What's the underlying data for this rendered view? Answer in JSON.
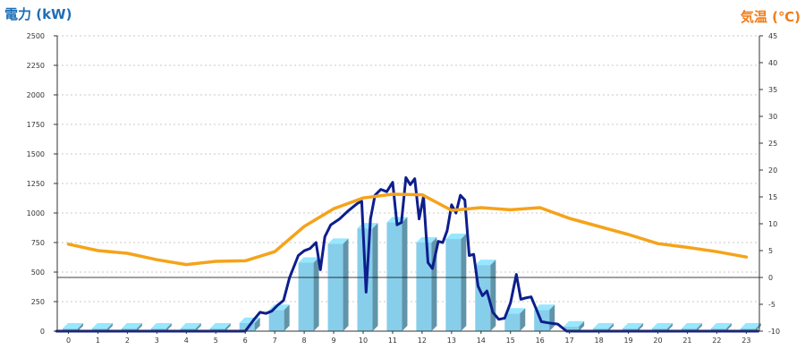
{
  "chart_data": {
    "type": "bar",
    "left_axis": {
      "title": "電力 (kW)",
      "color": "#1f6fb5",
      "ylim": [
        0,
        2500
      ],
      "ticks": [
        0,
        250,
        500,
        750,
        1000,
        1250,
        1500,
        1750,
        2000,
        2250,
        2500
      ]
    },
    "right_axis": {
      "title": "気温 (℃)",
      "color": "#f07d1a",
      "ylim": [
        -10,
        45
      ],
      "ticks": [
        -10,
        -5,
        0,
        5,
        10,
        15,
        20,
        25,
        30,
        35,
        40,
        45
      ]
    },
    "categories": [
      "0",
      "1",
      "2",
      "3",
      "4",
      "5",
      "6",
      "7",
      "8",
      "9",
      "10",
      "11",
      "12",
      "13",
      "14",
      "15",
      "16",
      "17",
      "18",
      "19",
      "20",
      "21",
      "22",
      "23"
    ],
    "grid": true,
    "series": [
      {
        "kind": "bar-3d",
        "axis": "left",
        "color": "#87ceeb",
        "values": [
          0,
          0,
          0,
          0,
          0,
          0,
          70,
          180,
          580,
          740,
          870,
          920,
          750,
          780,
          560,
          150,
          180,
          40,
          0,
          0,
          0,
          0,
          0,
          0
        ]
      },
      {
        "kind": "line",
        "axis": "left",
        "color": "#0d1e8c",
        "points": [
          [
            -0.4,
            0
          ],
          [
            6.0,
            0
          ],
          [
            6.3,
            100
          ],
          [
            6.5,
            160
          ],
          [
            6.7,
            150
          ],
          [
            6.9,
            170
          ],
          [
            7.1,
            220
          ],
          [
            7.3,
            260
          ],
          [
            7.5,
            450
          ],
          [
            7.8,
            640
          ],
          [
            8.0,
            680
          ],
          [
            8.2,
            700
          ],
          [
            8.4,
            750
          ],
          [
            8.55,
            520
          ],
          [
            8.7,
            800
          ],
          [
            8.9,
            900
          ],
          [
            9.2,
            950
          ],
          [
            9.5,
            1020
          ],
          [
            9.8,
            1080
          ],
          [
            9.95,
            1100
          ],
          [
            10.1,
            330
          ],
          [
            10.25,
            950
          ],
          [
            10.4,
            1150
          ],
          [
            10.6,
            1200
          ],
          [
            10.8,
            1180
          ],
          [
            11.0,
            1260
          ],
          [
            11.15,
            900
          ],
          [
            11.3,
            920
          ],
          [
            11.45,
            1300
          ],
          [
            11.6,
            1240
          ],
          [
            11.75,
            1290
          ],
          [
            11.9,
            950
          ],
          [
            12.05,
            1140
          ],
          [
            12.2,
            580
          ],
          [
            12.35,
            530
          ],
          [
            12.55,
            760
          ],
          [
            12.7,
            750
          ],
          [
            12.85,
            850
          ],
          [
            13.0,
            1070
          ],
          [
            13.15,
            1000
          ],
          [
            13.3,
            1150
          ],
          [
            13.45,
            1110
          ],
          [
            13.6,
            640
          ],
          [
            13.75,
            650
          ],
          [
            13.9,
            380
          ],
          [
            14.05,
            300
          ],
          [
            14.2,
            340
          ],
          [
            14.4,
            160
          ],
          [
            14.6,
            100
          ],
          [
            14.8,
            110
          ],
          [
            15.0,
            240
          ],
          [
            15.2,
            480
          ],
          [
            15.35,
            270
          ],
          [
            15.5,
            280
          ],
          [
            15.7,
            290
          ],
          [
            15.85,
            200
          ],
          [
            16.05,
            80
          ],
          [
            16.3,
            70
          ],
          [
            16.6,
            60
          ],
          [
            16.9,
            0
          ],
          [
            23.4,
            0
          ]
        ]
      },
      {
        "kind": "line",
        "axis": "right",
        "color": "#f5a31a",
        "points": [
          [
            0,
            6.2
          ],
          [
            1,
            5.0
          ],
          [
            2,
            4.5
          ],
          [
            3,
            3.3
          ],
          [
            4,
            2.4
          ],
          [
            5,
            3.0
          ],
          [
            6,
            3.1
          ],
          [
            7,
            4.8
          ],
          [
            8,
            9.5
          ],
          [
            9,
            12.8
          ],
          [
            10,
            14.8
          ],
          [
            11,
            15.5
          ],
          [
            12,
            15.4
          ],
          [
            13,
            12.5
          ],
          [
            14,
            13.0
          ],
          [
            15,
            12.6
          ],
          [
            16,
            13.0
          ],
          [
            17,
            11.0
          ],
          [
            18,
            9.5
          ],
          [
            19,
            8.0
          ],
          [
            20,
            6.3
          ],
          [
            21,
            5.6
          ],
          [
            22,
            4.8
          ],
          [
            23,
            3.8
          ]
        ]
      }
    ]
  }
}
